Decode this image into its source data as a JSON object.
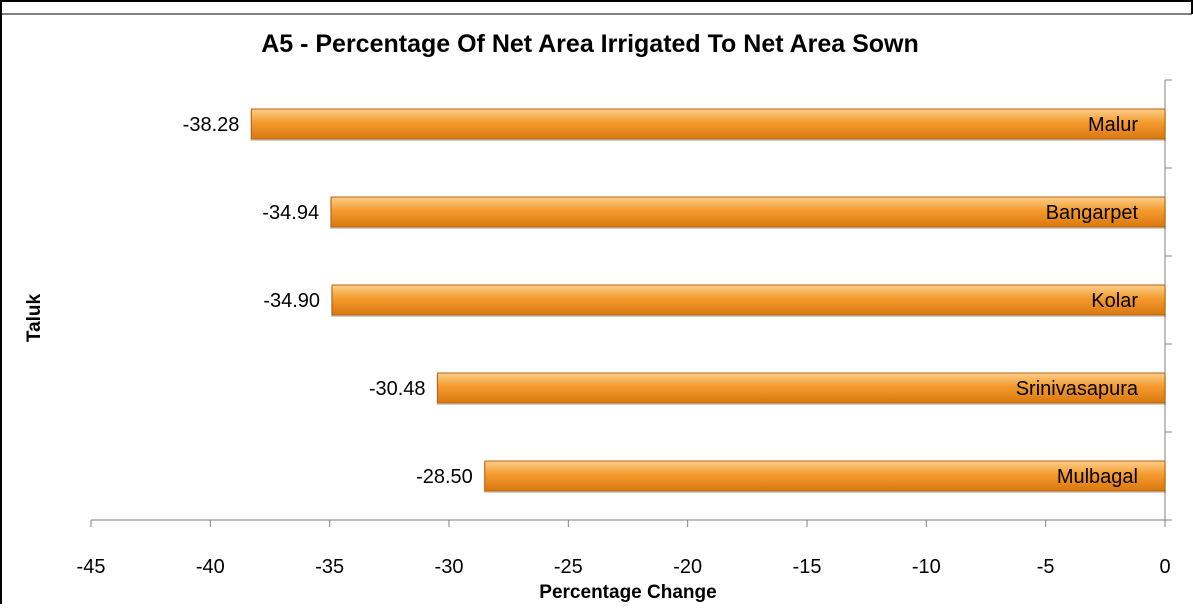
{
  "chart_data": {
    "type": "bar",
    "orientation": "horizontal",
    "title": "A5 - Percentage Of Net Area Irrigated To Net Area Sown",
    "xlabel": "Percentage Change",
    "ylabel": "Taluk",
    "xlim": [
      -45,
      0
    ],
    "xticks": [
      -45,
      -40,
      -35,
      -30,
      -25,
      -20,
      -15,
      -10,
      -5,
      0
    ],
    "categories": [
      "Malur",
      "Bangarpet",
      "Kolar",
      "Srinivasapura",
      "Mulbagal"
    ],
    "values": [
      -38.28,
      -34.94,
      -34.9,
      -30.48,
      -28.5
    ],
    "value_labels": [
      "-38.28",
      "-34.94",
      "-34.90",
      "-30.48",
      "-28.50"
    ],
    "grid": false,
    "legend": "none",
    "colors": {
      "bar_top": "#fbcf8c",
      "bar_mid": "#f59a2e",
      "bar_bottom": "#d9780f",
      "bar_stroke": "#b8620a",
      "axis": "#808080",
      "frame": "#000000"
    }
  }
}
